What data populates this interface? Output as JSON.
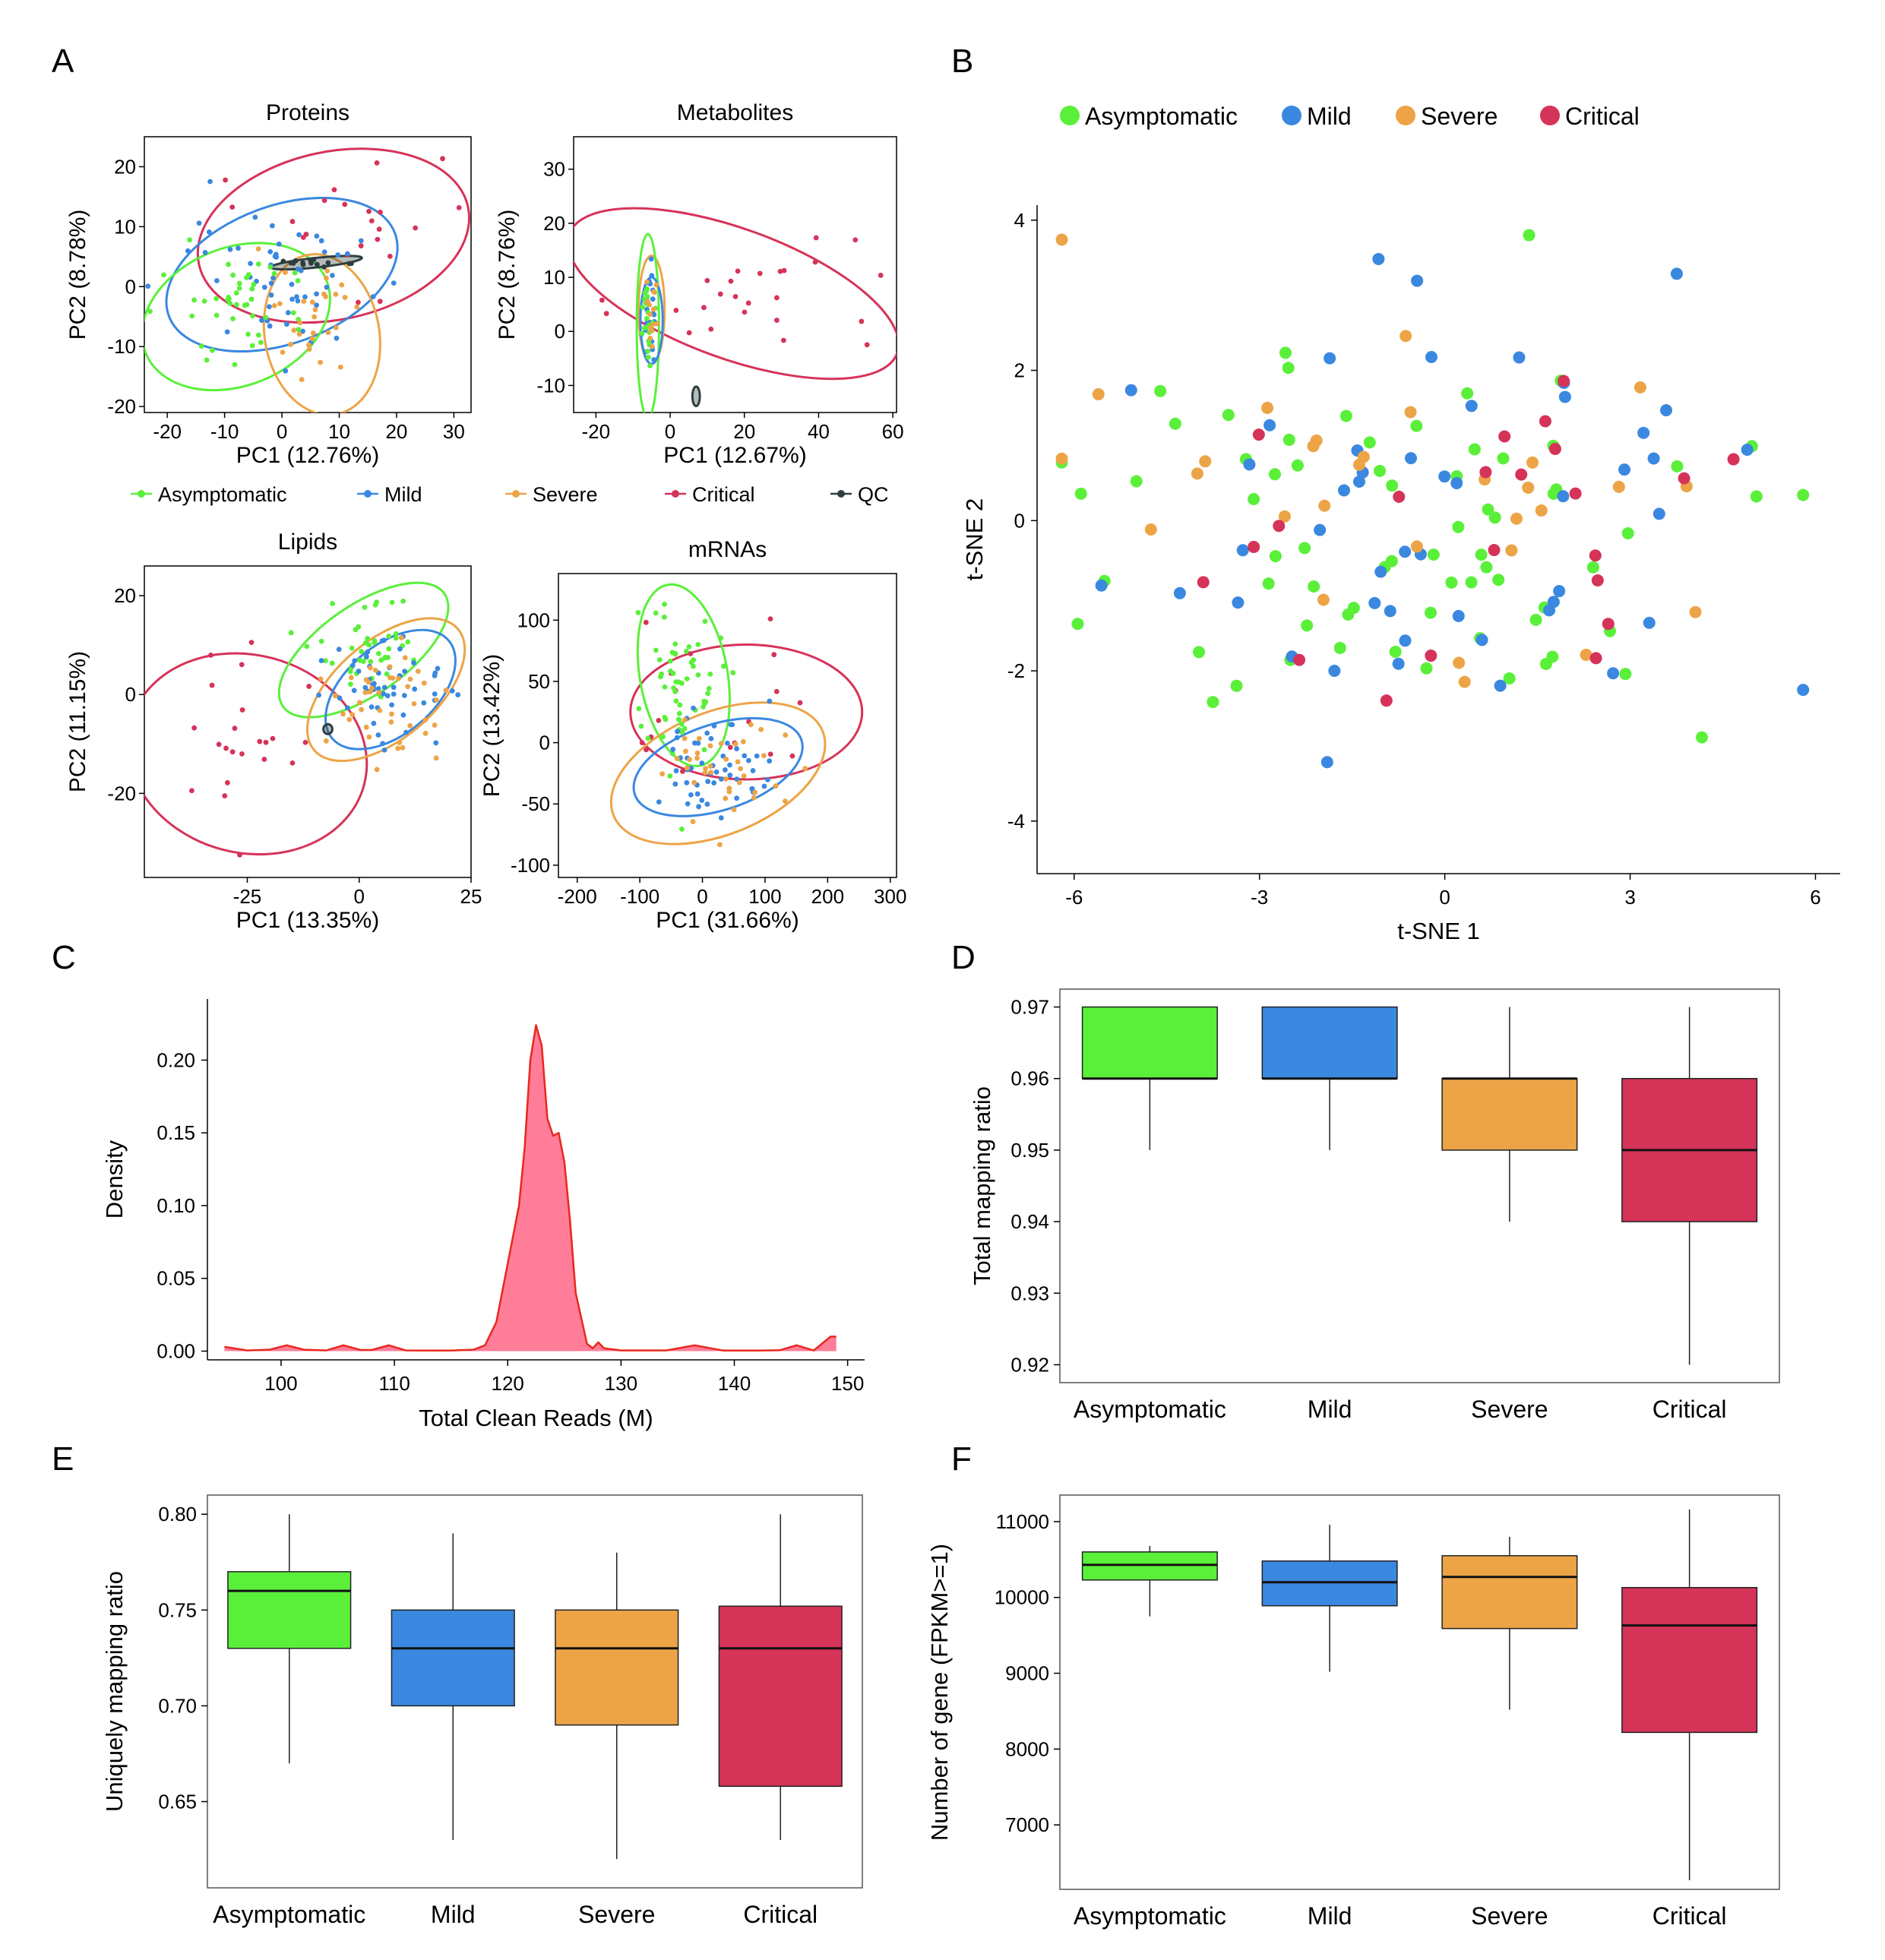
{
  "colors": {
    "asymptomatic": "#5af03a",
    "mild": "#3a88e0",
    "severe": "#eda447",
    "critical": "#d63359",
    "qc": "#2f3e3e",
    "density_fill": "#ff7d98",
    "density_line": "#e8281e"
  },
  "panel_letters": [
    "A",
    "B",
    "C",
    "D",
    "E",
    "F"
  ],
  "groups": [
    "Asymptomatic",
    "Mild",
    "Severe",
    "Critical"
  ],
  "legend_a": {
    "items": [
      "Asymptomatic",
      "Mild",
      "Severe",
      "Critical",
      "QC"
    ]
  },
  "legend_b": {
    "items": [
      "Asymptomatic",
      "Mild",
      "Severe",
      "Critical"
    ]
  },
  "chart_data": [
    {
      "type": "scatter",
      "panel": "A",
      "title": "Proteins",
      "xlabel": "PC1 (12.76%)",
      "ylabel": "PC2 (8.78%)",
      "xlim": [
        -24,
        33
      ],
      "ylim": [
        -21,
        25
      ],
      "xticks": [
        "-20",
        "-10",
        "0",
        "10",
        "20",
        "30"
      ],
      "yticks": [
        "20",
        "10",
        "0",
        "-10",
        "-20"
      ],
      "ellipses": [
        {
          "group": "critical",
          "cx": 9,
          "cy": 8.5,
          "rx": 24,
          "ry": 14,
          "angle": -12
        },
        {
          "group": "mild",
          "cx": 0,
          "cy": 2,
          "rx": 21,
          "ry": 11.5,
          "angle": -20
        },
        {
          "group": "asymptomatic",
          "cx": -8,
          "cy": -5,
          "rx": 17,
          "ry": 11.5,
          "angle": -22
        },
        {
          "group": "severe",
          "cx": 7,
          "cy": -8,
          "rx": 10,
          "ry": 13.5,
          "angle": -10
        },
        {
          "group": "qc",
          "cx": 6,
          "cy": 4,
          "rx": 8,
          "ry": 0.8,
          "angle": -6
        }
      ],
      "points": [
        {
          "group": "critical",
          "seed": 1,
          "n": 22,
          "cx": 9,
          "cy": 9,
          "sx": 9,
          "sy": 7
        },
        {
          "group": "mild",
          "seed": 2,
          "n": 55,
          "cx": 0,
          "cy": 1,
          "sx": 8,
          "sy": 6
        },
        {
          "group": "asymptomatic",
          "seed": 3,
          "n": 45,
          "cx": -8,
          "cy": -3,
          "sx": 6,
          "sy": 5
        },
        {
          "group": "severe",
          "seed": 4,
          "n": 30,
          "cx": 6,
          "cy": -6,
          "sx": 4,
          "sy": 5
        },
        {
          "group": "qc",
          "seed": 5,
          "n": 14,
          "cx": 6,
          "cy": 4,
          "sx": 3.5,
          "sy": 0.35
        }
      ]
    },
    {
      "type": "scatter",
      "panel": "A",
      "title": "Metabolites",
      "xlabel": "PC1 (12.67%)",
      "ylabel": "PC2 (8.76%)",
      "xlim": [
        -26,
        61
      ],
      "ylim": [
        -15,
        36
      ],
      "xticks": [
        "-20",
        "0",
        "20",
        "40",
        "60"
      ],
      "yticks": [
        "30",
        "20",
        "10",
        "0",
        "-10"
      ],
      "ellipses": [
        {
          "group": "critical",
          "cx": 17,
          "cy": 7,
          "rx": 47,
          "ry": 12,
          "angle": 20
        },
        {
          "group": "severe",
          "cx": -5,
          "cy": 4,
          "rx": 3.5,
          "ry": 10,
          "angle": 0
        },
        {
          "group": "asymptomatic",
          "cx": -6,
          "cy": 1,
          "rx": 3,
          "ry": 17,
          "angle": 0
        },
        {
          "group": "mild",
          "cx": -5,
          "cy": 2,
          "rx": 3,
          "ry": 8,
          "angle": 0
        },
        {
          "group": "qc",
          "cx": 7,
          "cy": -12,
          "rx": 1,
          "ry": 1.8,
          "angle": 0
        }
      ],
      "points": [
        {
          "group": "critical",
          "seed": 6,
          "n": 25,
          "cx": 20,
          "cy": 8,
          "sx": 17,
          "sy": 7
        },
        {
          "group": "mild",
          "seed": 7,
          "n": 25,
          "cx": -5,
          "cy": 3,
          "sx": 1.2,
          "sy": 4
        },
        {
          "group": "asymptomatic",
          "seed": 8,
          "n": 25,
          "cx": -6,
          "cy": 2,
          "sx": 1,
          "sy": 5
        },
        {
          "group": "severe",
          "seed": 9,
          "n": 15,
          "cx": -5,
          "cy": 4,
          "sx": 1,
          "sy": 3
        }
      ]
    },
    {
      "type": "scatter",
      "panel": "A",
      "title": "Lipids",
      "xlabel": "PC1 (13.35%)",
      "ylabel": "PC2 (11.15%)",
      "xlim": [
        -48,
        25
      ],
      "ylim": [
        -37,
        26
      ],
      "xticks": [
        "-25",
        "0",
        "25"
      ],
      "yticks": [
        "20",
        "0",
        "-20"
      ],
      "ellipses": [
        {
          "group": "critical",
          "cx": -25,
          "cy": -12,
          "rx": 27,
          "ry": 20,
          "angle": 15
        },
        {
          "group": "asymptomatic",
          "cx": 1,
          "cy": 9,
          "rx": 22,
          "ry": 9,
          "angle": -35
        },
        {
          "group": "mild",
          "cx": 7,
          "cy": 1,
          "rx": 17,
          "ry": 9,
          "angle": -40
        },
        {
          "group": "severe",
          "cx": 6,
          "cy": 1,
          "rx": 21,
          "ry": 10,
          "angle": -40
        },
        {
          "group": "qc",
          "cx": -7,
          "cy": -7,
          "rx": 1,
          "ry": 1,
          "angle": 0
        }
      ],
      "points": [
        {
          "group": "critical",
          "seed": 10,
          "n": 22,
          "cx": -22,
          "cy": -12,
          "sx": 9,
          "sy": 9
        },
        {
          "group": "asymptomatic",
          "seed": 11,
          "n": 45,
          "cx": 2,
          "cy": 8,
          "sx": 6,
          "sy": 6
        },
        {
          "group": "mild",
          "seed": 12,
          "n": 55,
          "cx": 6,
          "cy": 2,
          "sx": 6,
          "sy": 5
        },
        {
          "group": "severe",
          "seed": 13,
          "n": 45,
          "cx": 6,
          "cy": -1,
          "sx": 6,
          "sy": 6
        }
      ]
    },
    {
      "type": "scatter",
      "panel": "A",
      "title": "mRNAs",
      "xlabel": "PC1 (31.66%)",
      "ylabel": "PC2 (13.42%)",
      "xlim": [
        -230,
        310
      ],
      "ylim": [
        -110,
        138
      ],
      "xticks": [
        "-200",
        "-100",
        "0",
        "100",
        "200",
        "300"
      ],
      "yticks": [
        "100",
        "50",
        "0",
        "-50",
        "-100"
      ],
      "ellipses": [
        {
          "group": "critical",
          "cx": 70,
          "cy": 25,
          "rx": 185,
          "ry": 55,
          "angle": 0
        },
        {
          "group": "asymptomatic",
          "cx": -30,
          "cy": 55,
          "rx": 70,
          "ry": 75,
          "angle": -10
        },
        {
          "group": "mild",
          "cx": 25,
          "cy": -20,
          "rx": 140,
          "ry": 35,
          "angle": -18
        },
        {
          "group": "severe",
          "cx": 25,
          "cy": -25,
          "rx": 180,
          "ry": 50,
          "angle": -22
        }
      ],
      "points": [
        {
          "group": "critical",
          "seed": 14,
          "n": 18,
          "cx": 50,
          "cy": 20,
          "sx": 90,
          "sy": 40
        },
        {
          "group": "asymptomatic",
          "seed": 15,
          "n": 60,
          "cx": -30,
          "cy": 55,
          "sx": 30,
          "sy": 30
        },
        {
          "group": "mild",
          "seed": 16,
          "n": 55,
          "cx": 30,
          "cy": -15,
          "sx": 50,
          "sy": 20
        },
        {
          "group": "severe",
          "seed": 17,
          "n": 40,
          "cx": 40,
          "cy": -15,
          "sx": 60,
          "sy": 20
        }
      ]
    },
    {
      "type": "scatter",
      "panel": "B",
      "xlabel": "t-SNE 1",
      "ylabel": "t-SNE 2",
      "xlim": [
        -6.6,
        6.4
      ],
      "ylim": [
        -4.7,
        4.2
      ],
      "xticks": [
        "-6",
        "-3",
        "0",
        "3",
        "6"
      ],
      "yticks": [
        "4",
        "2",
        "0",
        "-2",
        "-4"
      ],
      "points": [
        {
          "group": "asymptomatic",
          "seed": 21,
          "n": 70,
          "cx": 0,
          "cy": 0,
          "sx": 3.6,
          "sy": 1.3
        },
        {
          "group": "mild",
          "seed": 22,
          "n": 50,
          "cx": 0,
          "cy": 0,
          "sx": 3.6,
          "sy": 1.4
        },
        {
          "group": "severe",
          "seed": 23,
          "n": 30,
          "cx": -1,
          "cy": 0.5,
          "sx": 3.4,
          "sy": 1.2
        },
        {
          "group": "critical",
          "seed": 24,
          "n": 22,
          "cx": 0,
          "cy": -0.2,
          "sx": 3.6,
          "sy": 1.4
        }
      ]
    },
    {
      "type": "area",
      "panel": "C",
      "xlabel": "Total Clean Reads (M)",
      "ylabel": "Density",
      "xlim": [
        93.5,
        151.5
      ],
      "ylim": [
        -0.006,
        0.242
      ],
      "xticks": [
        "100",
        "110",
        "120",
        "130",
        "140",
        "150"
      ],
      "yticks": [
        "0.20",
        "0.15",
        "0.10",
        "0.05",
        "0.00"
      ],
      "x": [
        95,
        97,
        99,
        100.5,
        102,
        104,
        105.5,
        107,
        108,
        109.5,
        111,
        113,
        115,
        117,
        118,
        119,
        120,
        121,
        121.5,
        122,
        122.5,
        123,
        123.5,
        124,
        124.5,
        125,
        125.5,
        126,
        127,
        127.5,
        128,
        128.5,
        130,
        134,
        136.5,
        139,
        142,
        144,
        145.5,
        147,
        148.5,
        149
      ],
      "y": [
        0.003,
        0.0005,
        0.001,
        0.004,
        0.001,
        0.0005,
        0.004,
        0.0008,
        0.0008,
        0.004,
        0.0005,
        0.0004,
        0.0004,
        0.001,
        0.004,
        0.02,
        0.06,
        0.1,
        0.14,
        0.2,
        0.224,
        0.21,
        0.16,
        0.148,
        0.15,
        0.13,
        0.09,
        0.04,
        0.005,
        0.002,
        0.006,
        0.002,
        0.0005,
        0.0005,
        0.004,
        0.0004,
        0.0004,
        0.0006,
        0.004,
        0.0004,
        0.01,
        0.01
      ]
    },
    {
      "type": "box",
      "panel": "D",
      "ylabel": "Total mapping ratio",
      "ylim": [
        0.9175,
        0.9725
      ],
      "yticks": [
        "0.97",
        "0.96",
        "0.95",
        "0.94",
        "0.93",
        "0.92"
      ],
      "categories": [
        "Asymptomatic",
        "Mild",
        "Severe",
        "Critical"
      ],
      "boxes": [
        {
          "min": 0.95,
          "q1": 0.96,
          "median": 0.96,
          "q3": 0.97,
          "max": 0.97
        },
        {
          "min": 0.95,
          "q1": 0.96,
          "median": 0.96,
          "q3": 0.97,
          "max": 0.97
        },
        {
          "min": 0.94,
          "q1": 0.95,
          "median": 0.96,
          "q3": 0.96,
          "max": 0.97
        },
        {
          "min": 0.92,
          "q1": 0.94,
          "median": 0.95,
          "q3": 0.96,
          "max": 0.97
        }
      ]
    },
    {
      "type": "box",
      "panel": "E",
      "ylabel": "Uniquely mapping ratio",
      "ylim": [
        0.605,
        0.81
      ],
      "yticks": [
        "0.80",
        "0.75",
        "0.70",
        "0.65"
      ],
      "categories": [
        "Asymptomatic",
        "Mild",
        "Severe",
        "Critical"
      ],
      "boxes": [
        {
          "min": 0.67,
          "q1": 0.73,
          "median": 0.76,
          "q3": 0.77,
          "max": 0.8
        },
        {
          "min": 0.63,
          "q1": 0.7,
          "median": 0.73,
          "q3": 0.75,
          "max": 0.79
        },
        {
          "min": 0.62,
          "q1": 0.69,
          "median": 0.73,
          "q3": 0.75,
          "max": 0.78
        },
        {
          "min": 0.63,
          "q1": 0.658,
          "median": 0.73,
          "q3": 0.752,
          "max": 0.8
        }
      ]
    },
    {
      "type": "box",
      "panel": "F",
      "ylabel": "Number of gene (FPKM>=1)",
      "ylim": [
        6150,
        11350
      ],
      "yticks": [
        "11000",
        "10000",
        "9000",
        "8000",
        "7000"
      ],
      "categories": [
        "Asymptomatic",
        "Mild",
        "Severe",
        "Critical"
      ],
      "boxes": [
        {
          "min": 9750,
          "q1": 10230,
          "median": 10430,
          "q3": 10600,
          "max": 10680
        },
        {
          "min": 9020,
          "q1": 9890,
          "median": 10200,
          "q3": 10480,
          "max": 10960
        },
        {
          "min": 8520,
          "q1": 9590,
          "median": 10270,
          "q3": 10550,
          "max": 10800
        },
        {
          "min": 6270,
          "q1": 8220,
          "median": 9630,
          "q3": 10130,
          "max": 11160
        }
      ]
    }
  ]
}
